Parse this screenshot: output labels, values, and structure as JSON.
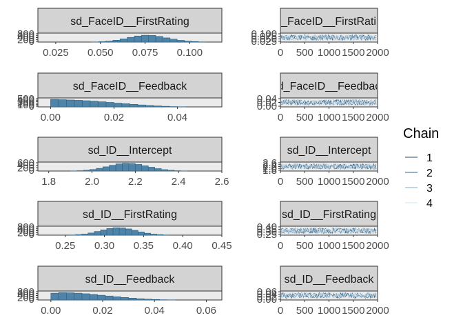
{
  "legend": {
    "title": "Chain",
    "items": [
      {
        "label": "1",
        "color": "#1f4a6e"
      },
      {
        "label": "2",
        "color": "#2f6690"
      },
      {
        "label": "3",
        "color": "#7aa8c9"
      },
      {
        "label": "4",
        "color": "#cfe3f1"
      }
    ]
  },
  "chart_data": [
    {
      "type": "bar",
      "panel": "histogram",
      "title": "sd_FaceID__FirstRating",
      "x_ticks": [
        "0.025",
        "0.050",
        "0.075",
        "0.100"
      ],
      "y_ticks": [
        "800",
        "600",
        "400",
        "200",
        "0"
      ],
      "xlim": [
        0.015,
        0.118
      ],
      "ylim": [
        0,
        850
      ],
      "bins": [
        0.045,
        0.049,
        0.053,
        0.057,
        0.061,
        0.065,
        0.069,
        0.073,
        0.077,
        0.081,
        0.085,
        0.089,
        0.093,
        0.097,
        0.101,
        0.105
      ],
      "values": [
        15,
        40,
        95,
        190,
        330,
        480,
        620,
        700,
        680,
        580,
        430,
        300,
        180,
        100,
        50,
        20
      ]
    },
    {
      "type": "line",
      "panel": "trace",
      "title": "sd_FaceID__FirstRating",
      "x_ticks": [
        "0",
        "500",
        "1000",
        "1500",
        "2000"
      ],
      "y_ticks": [
        "0.100",
        "0.075",
        "0.050",
        "0.025"
      ],
      "xlim": [
        0,
        2000
      ],
      "ylim": [
        0.02,
        0.11
      ]
    },
    {
      "type": "bar",
      "panel": "histogram",
      "title": "sd_FaceID__Feedback",
      "x_ticks": [
        "0.00",
        "0.02",
        "0.04"
      ],
      "y_ticks": [
        "500",
        "400",
        "300",
        "200",
        "100",
        "0"
      ],
      "xlim": [
        -0.004,
        0.054
      ],
      "ylim": [
        0,
        550
      ],
      "bins": [
        0.0,
        0.0025,
        0.005,
        0.0075,
        0.01,
        0.0125,
        0.015,
        0.0175,
        0.02,
        0.0225,
        0.025,
        0.0275,
        0.03,
        0.0325,
        0.035,
        0.0375,
        0.04
      ],
      "values": [
        500,
        480,
        460,
        440,
        410,
        380,
        340,
        300,
        250,
        210,
        170,
        130,
        95,
        65,
        40,
        20,
        10
      ]
    },
    {
      "type": "line",
      "panel": "trace",
      "title": "sd_FaceID__Feedback",
      "x_ticks": [
        "0",
        "500",
        "1000",
        "1500",
        "2000"
      ],
      "y_ticks": [
        "0.04",
        "0.02",
        "0.00"
      ],
      "xlim": [
        0,
        2000
      ],
      "ylim": [
        0,
        0.05
      ]
    },
    {
      "type": "bar",
      "panel": "histogram",
      "title": "sd_ID__Intercept",
      "x_ticks": [
        "1.8",
        "2.0",
        "2.2",
        "2.4",
        "2.6"
      ],
      "y_ticks": [
        "600",
        "400",
        "200",
        "0"
      ],
      "xlim": [
        1.75,
        2.6
      ],
      "ylim": [
        0,
        650
      ],
      "bins": [
        1.9,
        1.93,
        1.96,
        1.99,
        2.02,
        2.05,
        2.08,
        2.11,
        2.14,
        2.17,
        2.2,
        2.23,
        2.26,
        2.29,
        2.32,
        2.35,
        2.38,
        2.41
      ],
      "values": [
        10,
        25,
        60,
        120,
        210,
        330,
        450,
        560,
        610,
        590,
        520,
        410,
        300,
        190,
        110,
        60,
        25,
        10
      ]
    },
    {
      "type": "line",
      "panel": "trace",
      "title": "sd_ID__Intercept",
      "x_ticks": [
        "0",
        "500",
        "1000",
        "1500",
        "2000"
      ],
      "y_ticks": [
        "2.6",
        "2.4",
        "2.2",
        "2.0",
        "1.8"
      ],
      "xlim": [
        0,
        2000
      ],
      "ylim": [
        1.8,
        2.6
      ]
    },
    {
      "type": "bar",
      "panel": "histogram",
      "title": "sd_ID__FirstRating",
      "x_ticks": [
        "0.25",
        "0.30",
        "0.35",
        "0.40",
        "0.45"
      ],
      "y_ticks": [
        "800",
        "600",
        "400",
        "200",
        "0"
      ],
      "xlim": [
        0.215,
        0.45
      ],
      "ylim": [
        0,
        850
      ],
      "bins": [
        0.255,
        0.263,
        0.271,
        0.279,
        0.287,
        0.295,
        0.303,
        0.311,
        0.319,
        0.327,
        0.335,
        0.343,
        0.351,
        0.359,
        0.367,
        0.375
      ],
      "values": [
        20,
        50,
        110,
        220,
        380,
        540,
        680,
        760,
        740,
        640,
        490,
        330,
        200,
        110,
        50,
        20
      ]
    },
    {
      "type": "line",
      "panel": "trace",
      "title": "sd_ID__FirstRating",
      "x_ticks": [
        "0",
        "500",
        "1000",
        "1500",
        "2000"
      ],
      "y_ticks": [
        "0.40",
        "0.35",
        "0.30",
        "0.25"
      ],
      "xlim": [
        0,
        2000
      ],
      "ylim": [
        0.24,
        0.42
      ]
    },
    {
      "type": "bar",
      "panel": "histogram",
      "title": "sd_ID__Feedback",
      "x_ticks": [
        "0.00",
        "0.02",
        "0.04",
        "0.06"
      ],
      "y_ticks": [
        "800",
        "600",
        "400",
        "200",
        "0"
      ],
      "xlim": [
        -0.005,
        0.066
      ],
      "ylim": [
        0,
        850
      ],
      "bins": [
        0.0,
        0.003,
        0.006,
        0.009,
        0.012,
        0.015,
        0.018,
        0.021,
        0.024,
        0.027,
        0.03,
        0.033,
        0.036,
        0.039,
        0.042,
        0.045
      ],
      "values": [
        700,
        760,
        740,
        700,
        640,
        570,
        490,
        410,
        330,
        260,
        190,
        130,
        85,
        50,
        25,
        10
      ]
    },
    {
      "type": "line",
      "panel": "trace",
      "title": "sd_ID__Feedback",
      "x_ticks": [
        "0",
        "500",
        "1000",
        "1500",
        "2000"
      ],
      "y_ticks": [
        "0.06",
        "0.04",
        "0.02",
        "0.00"
      ],
      "xlim": [
        0,
        2000
      ],
      "ylim": [
        0,
        0.06
      ]
    }
  ]
}
